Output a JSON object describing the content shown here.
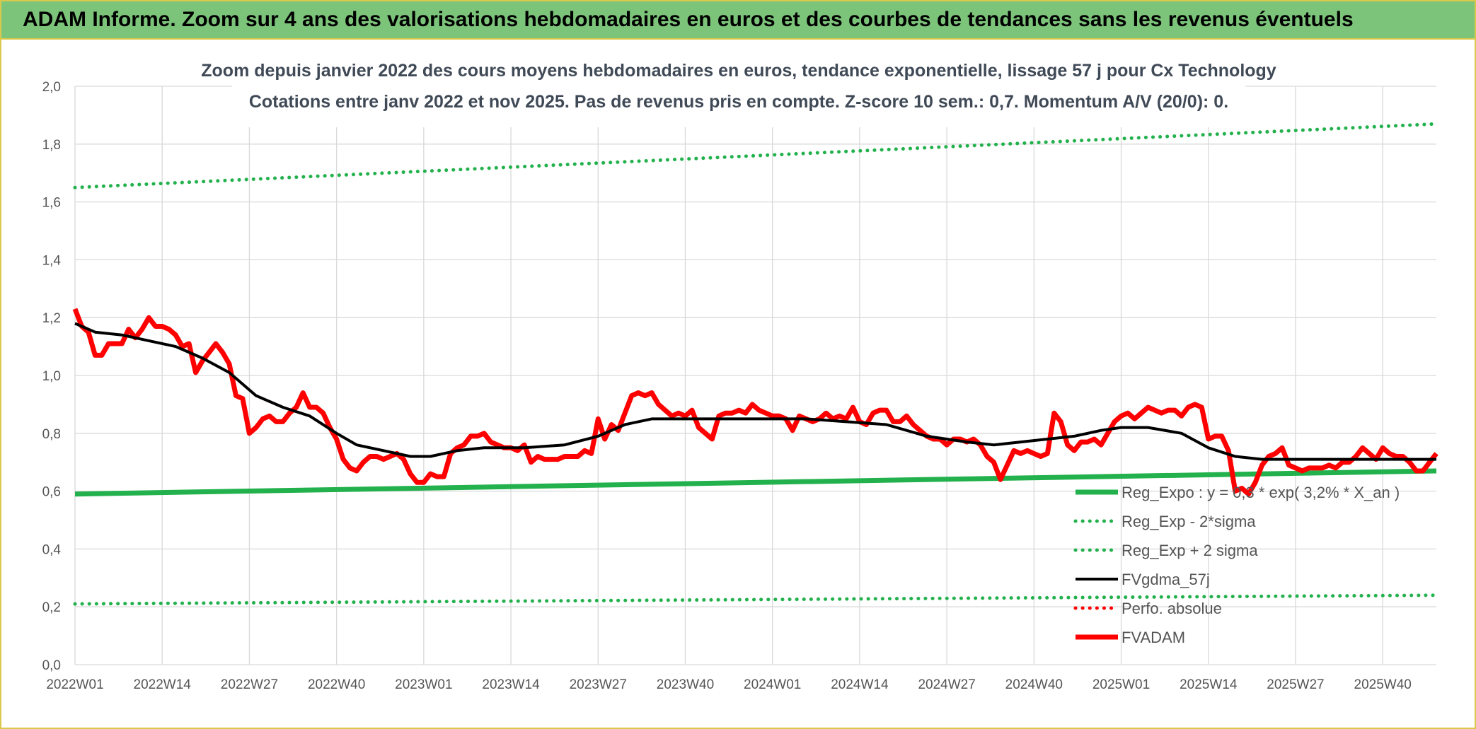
{
  "banner": {
    "title": "ADAM Informe. Zoom sur 4 ans des valorisations hebdomadaires en euros et des courbes de tendances sans les revenus éventuels"
  },
  "chart_data": {
    "type": "line",
    "title": "Zoom depuis janvier 2022 des cours moyens hebdomadaires en euros, tendance exponentielle, lissage 57 j pour Cx Technology",
    "subtitle": "Cotations entre janv 2022 et nov 2025. Pas de revenus pris en compte. Z-score 10 sem.: 0,7. Momentum A/V (20/0): 0.",
    "ylim": [
      0,
      2
    ],
    "y_ticks": [
      "0,0",
      "0,2",
      "0,4",
      "0,6",
      "0,8",
      "1,0",
      "1,2",
      "1,4",
      "1,6",
      "1,8",
      "2,0"
    ],
    "x_ticks": [
      "2022W01",
      "2022W14",
      "2022W27",
      "2022W40",
      "2023W01",
      "2023W14",
      "2023W27",
      "2023W40",
      "2024W01",
      "2024W14",
      "2024W27",
      "2024W40",
      "2025W01",
      "2025W14",
      "2025W27",
      "2025W40"
    ],
    "grid": true,
    "legend_position": "bottom-right",
    "series": [
      {
        "name": "Reg_Expo : y = 0,3 * exp( 3,2% *  X_an )",
        "color": "#22b14c",
        "style": "solid",
        "points": [
          [
            "2022W01",
            0.59
          ],
          [
            "2025W48",
            0.67
          ]
        ]
      },
      {
        "name": "Reg_Exp - 2*sigma",
        "color": "#22b14c",
        "style": "dotted",
        "points": [
          [
            "2022W01",
            0.21
          ],
          [
            "2025W48",
            0.24
          ]
        ]
      },
      {
        "name": "Reg_Exp + 2 sigma",
        "color": "#22b14c",
        "style": "dotted",
        "points": [
          [
            "2022W01",
            1.65
          ],
          [
            "2025W48",
            1.87
          ]
        ]
      },
      {
        "name": "FVgdma_57j",
        "color": "#000000",
        "style": "solid",
        "points": [
          [
            "2022W01",
            1.18
          ],
          [
            "2022W04",
            1.15
          ],
          [
            "2022W08",
            1.14
          ],
          [
            "2022W12",
            1.12
          ],
          [
            "2022W16",
            1.1
          ],
          [
            "2022W20",
            1.06
          ],
          [
            "2022W24",
            1.01
          ],
          [
            "2022W28",
            0.93
          ],
          [
            "2022W32",
            0.89
          ],
          [
            "2022W36",
            0.86
          ],
          [
            "2022W40",
            0.8
          ],
          [
            "2022W43",
            0.76
          ],
          [
            "2022W47",
            0.74
          ],
          [
            "2022W51",
            0.72
          ],
          [
            "2023W02",
            0.72
          ],
          [
            "2023W06",
            0.74
          ],
          [
            "2023W10",
            0.75
          ],
          [
            "2023W16",
            0.75
          ],
          [
            "2023W22",
            0.76
          ],
          [
            "2023W27",
            0.79
          ],
          [
            "2023W31",
            0.83
          ],
          [
            "2023W35",
            0.85
          ],
          [
            "2023W40",
            0.85
          ],
          [
            "2023W46",
            0.85
          ],
          [
            "2023W52",
            0.85
          ],
          [
            "2024W06",
            0.85
          ],
          [
            "2024W12",
            0.84
          ],
          [
            "2024W18",
            0.83
          ],
          [
            "2024W24",
            0.79
          ],
          [
            "2024W30",
            0.77
          ],
          [
            "2024W34",
            0.76
          ],
          [
            "2024W38",
            0.77
          ],
          [
            "2024W42",
            0.78
          ],
          [
            "2024W46",
            0.79
          ],
          [
            "2024W50",
            0.81
          ],
          [
            "2025W01",
            0.82
          ],
          [
            "2025W05",
            0.82
          ],
          [
            "2025W10",
            0.8
          ],
          [
            "2025W14",
            0.75
          ],
          [
            "2025W18",
            0.72
          ],
          [
            "2025W22",
            0.71
          ],
          [
            "2025W30",
            0.71
          ],
          [
            "2025W38",
            0.71
          ],
          [
            "2025W48",
            0.71
          ]
        ]
      },
      {
        "name": "Perfo. absolue",
        "color": "#ff0000",
        "style": "dotted",
        "points": []
      },
      {
        "name": "FVADAM",
        "color": "#ff0000",
        "style": "solid",
        "points": [
          [
            "2022W01",
            1.23
          ],
          [
            "2022W02",
            1.17
          ],
          [
            "2022W03",
            1.15
          ],
          [
            "2022W04",
            1.07
          ],
          [
            "2022W05",
            1.07
          ],
          [
            "2022W06",
            1.11
          ],
          [
            "2022W07",
            1.11
          ],
          [
            "2022W08",
            1.11
          ],
          [
            "2022W09",
            1.16
          ],
          [
            "2022W10",
            1.13
          ],
          [
            "2022W11",
            1.16
          ],
          [
            "2022W12",
            1.2
          ],
          [
            "2022W13",
            1.17
          ],
          [
            "2022W14",
            1.17
          ],
          [
            "2022W15",
            1.16
          ],
          [
            "2022W16",
            1.14
          ],
          [
            "2022W17",
            1.1
          ],
          [
            "2022W18",
            1.11
          ],
          [
            "2022W19",
            1.01
          ],
          [
            "2022W20",
            1.05
          ],
          [
            "2022W21",
            1.08
          ],
          [
            "2022W22",
            1.11
          ],
          [
            "2022W23",
            1.08
          ],
          [
            "2022W24",
            1.04
          ],
          [
            "2022W25",
            0.93
          ],
          [
            "2022W26",
            0.92
          ],
          [
            "2022W27",
            0.8
          ],
          [
            "2022W28",
            0.82
          ],
          [
            "2022W29",
            0.85
          ],
          [
            "2022W30",
            0.86
          ],
          [
            "2022W31",
            0.84
          ],
          [
            "2022W32",
            0.84
          ],
          [
            "2022W33",
            0.87
          ],
          [
            "2022W34",
            0.89
          ],
          [
            "2022W35",
            0.94
          ],
          [
            "2022W36",
            0.89
          ],
          [
            "2022W37",
            0.89
          ],
          [
            "2022W38",
            0.87
          ],
          [
            "2022W39",
            0.82
          ],
          [
            "2022W40",
            0.78
          ],
          [
            "2022W41",
            0.71
          ],
          [
            "2022W42",
            0.68
          ],
          [
            "2022W43",
            0.67
          ],
          [
            "2022W44",
            0.7
          ],
          [
            "2022W45",
            0.72
          ],
          [
            "2022W46",
            0.72
          ],
          [
            "2022W47",
            0.71
          ],
          [
            "2022W48",
            0.72
          ],
          [
            "2022W49",
            0.73
          ],
          [
            "2022W50",
            0.71
          ],
          [
            "2022W51",
            0.66
          ],
          [
            "2022W52",
            0.63
          ],
          [
            "2023W01",
            0.63
          ],
          [
            "2023W02",
            0.66
          ],
          [
            "2023W03",
            0.65
          ],
          [
            "2023W04",
            0.65
          ],
          [
            "2023W05",
            0.73
          ],
          [
            "2023W06",
            0.75
          ],
          [
            "2023W07",
            0.76
          ],
          [
            "2023W08",
            0.79
          ],
          [
            "2023W09",
            0.79
          ],
          [
            "2023W10",
            0.8
          ],
          [
            "2023W11",
            0.77
          ],
          [
            "2023W12",
            0.76
          ],
          [
            "2023W13",
            0.75
          ],
          [
            "2023W14",
            0.75
          ],
          [
            "2023W15",
            0.74
          ],
          [
            "2023W16",
            0.76
          ],
          [
            "2023W17",
            0.7
          ],
          [
            "2023W18",
            0.72
          ],
          [
            "2023W19",
            0.71
          ],
          [
            "2023W20",
            0.71
          ],
          [
            "2023W21",
            0.71
          ],
          [
            "2023W22",
            0.72
          ],
          [
            "2023W23",
            0.72
          ],
          [
            "2023W24",
            0.72
          ],
          [
            "2023W25",
            0.74
          ],
          [
            "2023W26",
            0.73
          ],
          [
            "2023W27",
            0.85
          ],
          [
            "2023W28",
            0.78
          ],
          [
            "2023W29",
            0.83
          ],
          [
            "2023W30",
            0.81
          ],
          [
            "2023W31",
            0.87
          ],
          [
            "2023W32",
            0.93
          ],
          [
            "2023W33",
            0.94
          ],
          [
            "2023W34",
            0.93
          ],
          [
            "2023W35",
            0.94
          ],
          [
            "2023W36",
            0.9
          ],
          [
            "2023W37",
            0.88
          ],
          [
            "2023W38",
            0.86
          ],
          [
            "2023W39",
            0.87
          ],
          [
            "2023W40",
            0.86
          ],
          [
            "2023W41",
            0.88
          ],
          [
            "2023W42",
            0.82
          ],
          [
            "2023W43",
            0.8
          ],
          [
            "2023W44",
            0.78
          ],
          [
            "2023W45",
            0.86
          ],
          [
            "2023W46",
            0.87
          ],
          [
            "2023W47",
            0.87
          ],
          [
            "2023W48",
            0.88
          ],
          [
            "2023W49",
            0.87
          ],
          [
            "2023W50",
            0.9
          ],
          [
            "2023W51",
            0.88
          ],
          [
            "2023W52",
            0.87
          ],
          [
            "2024W01",
            0.86
          ],
          [
            "2024W02",
            0.86
          ],
          [
            "2024W03",
            0.85
          ],
          [
            "2024W04",
            0.81
          ],
          [
            "2024W05",
            0.86
          ],
          [
            "2024W06",
            0.85
          ],
          [
            "2024W07",
            0.84
          ],
          [
            "2024W08",
            0.85
          ],
          [
            "2024W09",
            0.87
          ],
          [
            "2024W10",
            0.85
          ],
          [
            "2024W11",
            0.86
          ],
          [
            "2024W12",
            0.85
          ],
          [
            "2024W13",
            0.89
          ],
          [
            "2024W14",
            0.84
          ],
          [
            "2024W15",
            0.83
          ],
          [
            "2024W16",
            0.87
          ],
          [
            "2024W17",
            0.88
          ],
          [
            "2024W18",
            0.88
          ],
          [
            "2024W19",
            0.84
          ],
          [
            "2024W20",
            0.84
          ],
          [
            "2024W21",
            0.86
          ],
          [
            "2024W22",
            0.83
          ],
          [
            "2024W23",
            0.81
          ],
          [
            "2024W24",
            0.79
          ],
          [
            "2024W25",
            0.78
          ],
          [
            "2024W26",
            0.78
          ],
          [
            "2024W27",
            0.76
          ],
          [
            "2024W28",
            0.78
          ],
          [
            "2024W29",
            0.78
          ],
          [
            "2024W30",
            0.77
          ],
          [
            "2024W31",
            0.78
          ],
          [
            "2024W32",
            0.76
          ],
          [
            "2024W33",
            0.72
          ],
          [
            "2024W34",
            0.7
          ],
          [
            "2024W35",
            0.64
          ],
          [
            "2024W36",
            0.69
          ],
          [
            "2024W37",
            0.74
          ],
          [
            "2024W38",
            0.73
          ],
          [
            "2024W39",
            0.74
          ],
          [
            "2024W40",
            0.73
          ],
          [
            "2024W41",
            0.72
          ],
          [
            "2024W42",
            0.73
          ],
          [
            "2024W43",
            0.87
          ],
          [
            "2024W44",
            0.84
          ],
          [
            "2024W45",
            0.76
          ],
          [
            "2024W46",
            0.74
          ],
          [
            "2024W47",
            0.77
          ],
          [
            "2024W48",
            0.77
          ],
          [
            "2024W49",
            0.78
          ],
          [
            "2024W50",
            0.76
          ],
          [
            "2024W51",
            0.8
          ],
          [
            "2024W52",
            0.84
          ],
          [
            "2025W01",
            0.86
          ],
          [
            "2025W02",
            0.87
          ],
          [
            "2025W03",
            0.85
          ],
          [
            "2025W04",
            0.87
          ],
          [
            "2025W05",
            0.89
          ],
          [
            "2025W06",
            0.88
          ],
          [
            "2025W07",
            0.87
          ],
          [
            "2025W08",
            0.88
          ],
          [
            "2025W09",
            0.88
          ],
          [
            "2025W10",
            0.86
          ],
          [
            "2025W11",
            0.89
          ],
          [
            "2025W12",
            0.9
          ],
          [
            "2025W13",
            0.89
          ],
          [
            "2025W14",
            0.78
          ],
          [
            "2025W15",
            0.79
          ],
          [
            "2025W16",
            0.79
          ],
          [
            "2025W17",
            0.74
          ],
          [
            "2025W18",
            0.6
          ],
          [
            "2025W19",
            0.61
          ],
          [
            "2025W20",
            0.59
          ],
          [
            "2025W21",
            0.63
          ],
          [
            "2025W22",
            0.69
          ],
          [
            "2025W23",
            0.72
          ],
          [
            "2025W24",
            0.73
          ],
          [
            "2025W25",
            0.75
          ],
          [
            "2025W26",
            0.69
          ],
          [
            "2025W27",
            0.68
          ],
          [
            "2025W28",
            0.67
          ],
          [
            "2025W29",
            0.68
          ],
          [
            "2025W30",
            0.68
          ],
          [
            "2025W31",
            0.68
          ],
          [
            "2025W32",
            0.69
          ],
          [
            "2025W33",
            0.68
          ],
          [
            "2025W34",
            0.7
          ],
          [
            "2025W35",
            0.7
          ],
          [
            "2025W36",
            0.72
          ],
          [
            "2025W37",
            0.75
          ],
          [
            "2025W38",
            0.73
          ],
          [
            "2025W39",
            0.71
          ],
          [
            "2025W40",
            0.75
          ],
          [
            "2025W41",
            0.73
          ],
          [
            "2025W42",
            0.72
          ],
          [
            "2025W43",
            0.72
          ],
          [
            "2025W44",
            0.7
          ],
          [
            "2025W45",
            0.67
          ],
          [
            "2025W46",
            0.67
          ],
          [
            "2025W47",
            0.7
          ],
          [
            "2025W48",
            0.73
          ]
        ]
      }
    ]
  }
}
